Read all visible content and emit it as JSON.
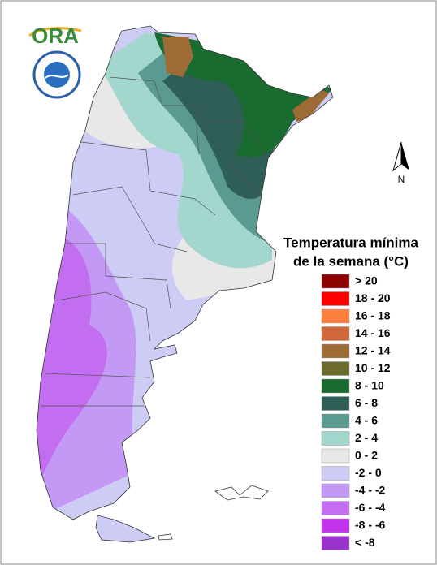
{
  "logo": {
    "text": "ORA"
  },
  "compass": {
    "label": "N"
  },
  "legend": {
    "title": [
      "Temperatura mínima",
      "de la semana (°C)"
    ],
    "items": [
      {
        "label": "> 20",
        "color": "#8b0000"
      },
      {
        "label": "18 - 20",
        "color": "#ff0000"
      },
      {
        "label": "16 - 18",
        "color": "#ff7f3f"
      },
      {
        "label": "14 - 16",
        "color": "#d2693c"
      },
      {
        "label": "12 - 14",
        "color": "#9c6b36"
      },
      {
        "label": "10 - 12",
        "color": "#6b6b2e"
      },
      {
        "label": "8 - 10",
        "color": "#1a6b30"
      },
      {
        "label": "6 - 8",
        "color": "#2e5e55"
      },
      {
        "label": "4 - 6",
        "color": "#5a9a91"
      },
      {
        "label": "2 - 4",
        "color": "#a3d6cc"
      },
      {
        "label": "0 - 2",
        "color": "#e8e8e8"
      },
      {
        "label": "-2 - 0",
        "color": "#ccccf5"
      },
      {
        "label": "-4 - -2",
        "color": "#c499f5"
      },
      {
        "label": "-6 - -4",
        "color": "#c36df0"
      },
      {
        "label": "-8 - -6",
        "color": "#c233ee"
      },
      {
        "label": "< -8",
        "color": "#9933cc"
      }
    ]
  }
}
